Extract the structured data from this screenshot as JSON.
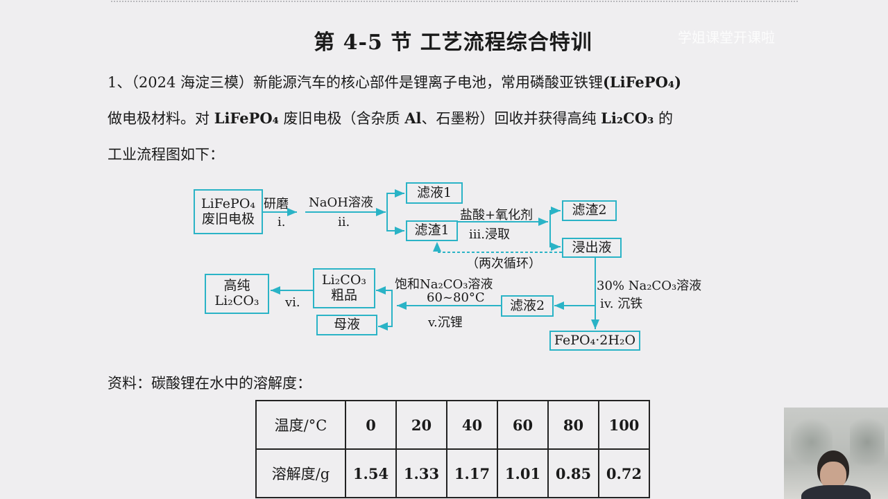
{
  "watermark": "学姐课堂开课啦",
  "title": "第 4-5 节  工艺流程综合特训",
  "question": {
    "line1_a": "1、（2024 海淀三模）新能源汽车的核心部件是锂离子电池，常用磷酸亚铁锂",
    "line1_b": "(LiFePO₄)",
    "line2_a": "做电极材料。对 ",
    "line2_b": "LiFePO₄",
    "line2_c": " 废旧电极（含杂质 ",
    "line2_d": "Al",
    "line2_e": "、石墨粉）回收并获得高纯 ",
    "line2_f": "Li₂CO₃",
    "line2_g": " 的",
    "line3": "工业流程图如下："
  },
  "flow": {
    "color": "#2ab3c6",
    "start_box": [
      "LiFePO₄",
      "废旧电极"
    ],
    "step_i_top": "研磨",
    "step_i": "i.",
    "step_ii_top": "NaOH溶液",
    "step_ii": "ii.",
    "filtrate1": "滤液1",
    "residue1": "滤渣1",
    "step_iii_top": "盐酸+氧化剂",
    "step_iii": "iii.浸取",
    "cycle_note": "（两次循环）",
    "residue2": "滤渣2",
    "leachate": "浸出液",
    "step_iv_top": "30% Na₂CO₃溶液",
    "step_iv": "iv. 沉铁",
    "fepo4": "FePO₄·2H₂O",
    "filtrate2": "滤液2",
    "step_v_top": "饱和Na₂CO₃溶液",
    "step_v_temp": "60~80°C",
    "step_v": "v.沉锂",
    "crude": [
      "Li₂CO₃",
      "粗品"
    ],
    "mother_liquor": "母液",
    "step_vi": "vi.",
    "pure": [
      "高纯",
      "Li₂CO₃"
    ]
  },
  "reference_label": "资料：碳酸锂在水中的溶解度：",
  "table": {
    "row_headers": [
      "温度/°C",
      "溶解度/g"
    ],
    "temperatures": [
      "0",
      "20",
      "40",
      "60",
      "80",
      "100"
    ],
    "solubility": [
      "1.54",
      "1.33",
      "1.17",
      "1.01",
      "0.85",
      "0.72"
    ]
  }
}
